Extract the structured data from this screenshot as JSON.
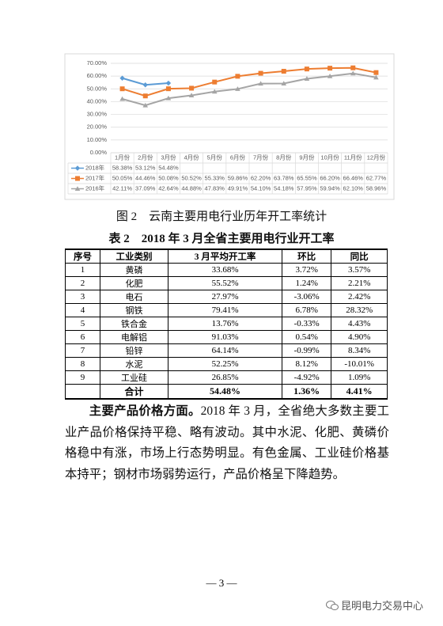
{
  "chart_data": {
    "type": "line",
    "categories": [
      "1月份",
      "2月份",
      "3月份",
      "4月份",
      "5月份",
      "6月份",
      "7月份",
      "8月份",
      "9月份",
      "10月份",
      "11月份",
      "12月份"
    ],
    "series": [
      {
        "name": "2018年",
        "color": "#5b9bd5",
        "marker": "diamond",
        "values": [
          58.38,
          53.12,
          54.48,
          null,
          null,
          null,
          null,
          null,
          null,
          null,
          null,
          null
        ],
        "value_labels": [
          "58.38%",
          "53.12%",
          "54.48%",
          null,
          null,
          null,
          null,
          null,
          null,
          null,
          null,
          null
        ]
      },
      {
        "name": "2017年",
        "color": "#ed7d31",
        "marker": "square",
        "values": [
          50.05,
          44.46,
          50.08,
          50.52,
          55.33,
          59.86,
          62.2,
          63.78,
          65.55,
          66.2,
          66.46,
          62.77
        ],
        "value_labels": [
          "50.05%",
          "44.46%",
          "50.08%",
          "50.52%",
          "55.33%",
          "59.86%",
          "62.20%",
          "63.78%",
          "65.55%",
          "66.20%",
          "66.46%",
          "62.77%"
        ]
      },
      {
        "name": "2016年",
        "color": "#a5a5a5",
        "marker": "triangle",
        "values": [
          42.11,
          37.09,
          42.64,
          44.88,
          47.83,
          49.91,
          54.1,
          54.18,
          57.95,
          59.94,
          62.1,
          58.96
        ],
        "value_labels": [
          "42.11%",
          "37.09%",
          "42.64%",
          "44.88%",
          "47.83%",
          "49.91%",
          "54.10%",
          "54.18%",
          "57.95%",
          "59.94%",
          "62.10%",
          "58.96%"
        ]
      }
    ],
    "ylim": [
      0,
      70
    ],
    "yticks": [
      {
        "value": 0,
        "label": "0.00%"
      },
      {
        "value": 10,
        "label": "10.00%"
      },
      {
        "value": 20,
        "label": "20.00%"
      },
      {
        "value": 30,
        "label": "30.00%"
      },
      {
        "value": 40,
        "label": "40.00%"
      },
      {
        "value": 50,
        "label": "50.00%"
      },
      {
        "value": 60,
        "label": "60.00%"
      },
      {
        "value": 70,
        "label": "70.00%"
      }
    ],
    "grid": true
  },
  "figure_caption": "图 2　云南主要用电行业历年开工率统计",
  "table": {
    "title": "表 2　2018 年 3 月全省主要用电行业开工率",
    "header": [
      "序号",
      "工业类别",
      "3 月平均开工率",
      "环比",
      "同比"
    ],
    "rows": [
      [
        "1",
        "黄磷",
        "33.68%",
        "3.72%",
        "3.57%"
      ],
      [
        "2",
        "化肥",
        "55.52%",
        "1.24%",
        "2.21%"
      ],
      [
        "3",
        "电石",
        "27.97%",
        "-3.06%",
        "2.42%"
      ],
      [
        "4",
        "钢铁",
        "79.41%",
        "6.78%",
        "28.32%"
      ],
      [
        "5",
        "铁合金",
        "13.76%",
        "-0.33%",
        "4.43%"
      ],
      [
        "6",
        "电解铝",
        "91.03%",
        "0.54%",
        "4.90%"
      ],
      [
        "7",
        "铅锌",
        "64.14%",
        "-0.99%",
        "8.34%"
      ],
      [
        "8",
        "水泥",
        "52.25%",
        "8.12%",
        "-10.01%"
      ],
      [
        "9",
        "工业硅",
        "26.85%",
        "-4.92%",
        "1.09%"
      ]
    ],
    "total": [
      "合计",
      "54.48%",
      "1.36%",
      "4.41%"
    ]
  },
  "paragraph": {
    "lead": "主要产品价格方面。",
    "body": "2018 年 3 月，全省绝大多数主要工业产品价格保持平稳、略有波动。其中水泥、化肥、黄磷价格稳中有涨，市场上行态势明显。有色金属、工业硅价格基本持平；钢材市场弱势运行，产品价格呈下降趋势。"
  },
  "page_number": "— 3 —",
  "watermark": "昆明电力交易中心"
}
